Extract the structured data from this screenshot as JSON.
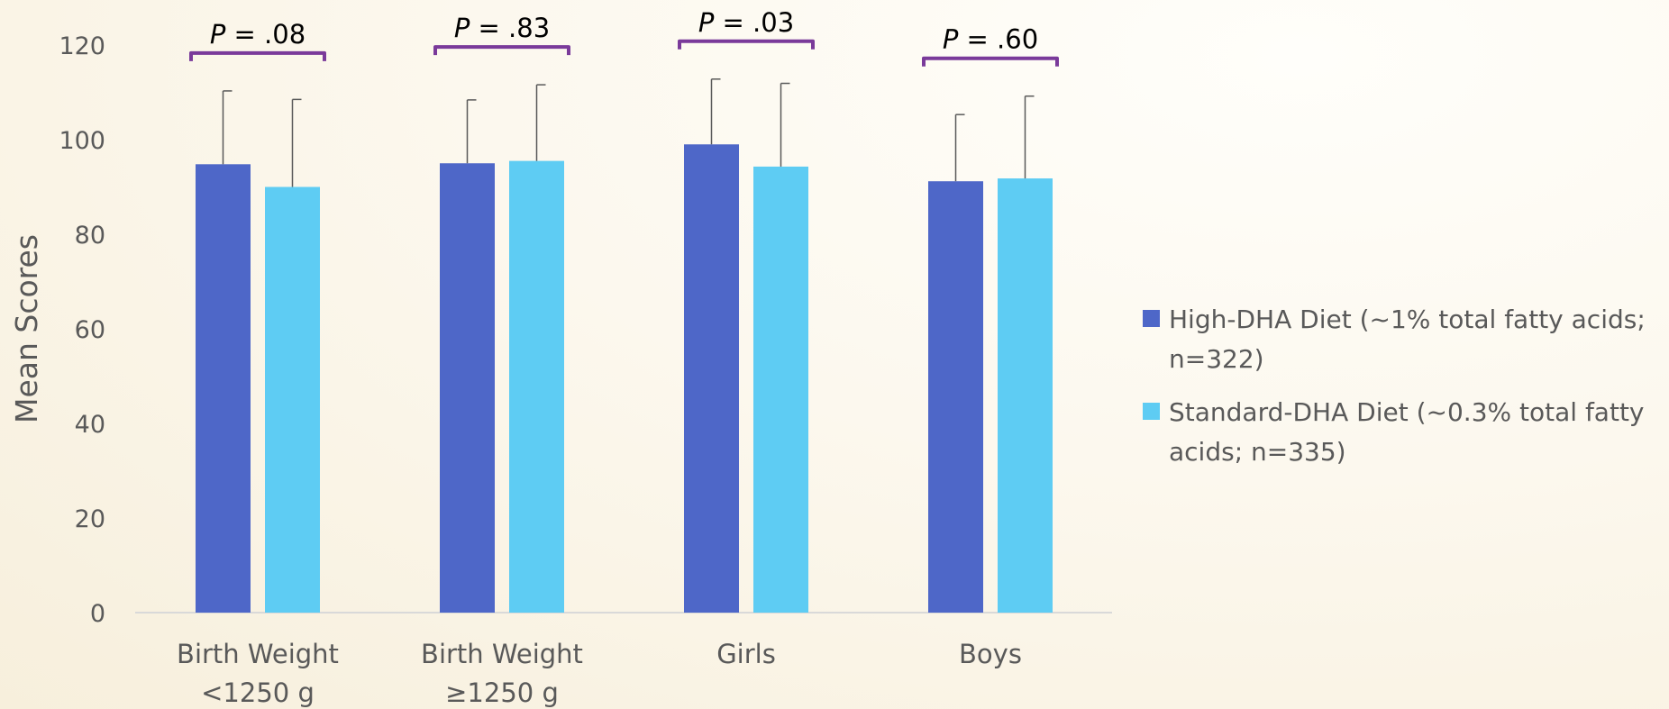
{
  "chart_data": {
    "type": "bar",
    "ylabel": "Mean Scores",
    "ylim": [
      0,
      120
    ],
    "yticks": [
      "0",
      "20",
      "40",
      "60",
      "80",
      "100",
      "120"
    ],
    "categories": [
      {
        "line1": "Birth Weight",
        "line2": "<1250 g"
      },
      {
        "line1": "Birth Weight",
        "line2": "≥1250 g"
      },
      {
        "line1": "Girls",
        "line2": ""
      },
      {
        "line1": "Boys",
        "line2": ""
      }
    ],
    "series": [
      {
        "name_line1": "High-DHA Diet (~1% total fatty acids;",
        "name_line2": "n=322)",
        "color": "#4E67C8",
        "values": [
          94.8,
          95.0,
          99.0,
          91.2
        ],
        "error_upper": [
          110.3,
          108.4,
          112.8,
          105.3
        ]
      },
      {
        "name_line1": "Standard-DHA Diet (~0.3% total fatty",
        "name_line2": "acids; n=335)",
        "color": "#5ECCF3",
        "values": [
          90.0,
          95.5,
          94.3,
          91.8
        ],
        "error_upper": [
          108.5,
          111.6,
          111.9,
          109.2
        ]
      }
    ],
    "p_values": [
      {
        "label": "P",
        "text": " = .08"
      },
      {
        "label": "P",
        "text": " = .83"
      },
      {
        "label": "P",
        "text": " = .03"
      },
      {
        "label": "P",
        "text": " = .60"
      }
    ],
    "bracket_color": "#7A3A9A",
    "error_bar_color": "#595959",
    "axis_color": "#D9D9D9",
    "grid": false,
    "legend_position": "right"
  }
}
